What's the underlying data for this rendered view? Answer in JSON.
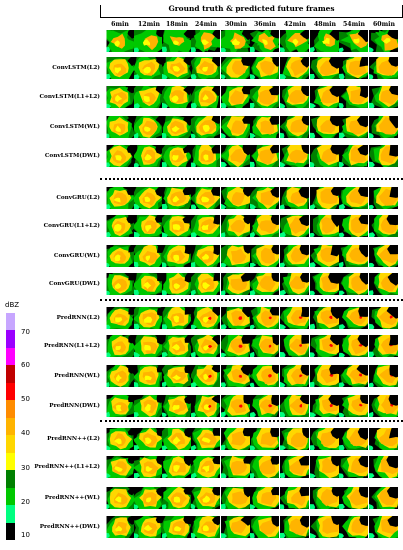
{
  "header": {
    "title": "Ground truth & predicted future frames"
  },
  "time_labels": [
    "6min",
    "12min",
    "18min",
    "24min",
    "30min",
    "36min",
    "42min",
    "48min",
    "54min",
    "60min"
  ],
  "rows": [
    {
      "label": ""
    },
    {
      "label": "ConvLSTM(L2)"
    },
    {
      "label": "ConvLSTM(L1+L2)"
    },
    {
      "label": "ConvLSTM(WL)"
    },
    {
      "label": "ConvLSTM(DWL)"
    },
    {
      "label": "ConvGRU(L2)"
    },
    {
      "label": "ConvGRU(L1+L2)"
    },
    {
      "label": "ConvGRU(WL)"
    },
    {
      "label": "ConvGRU(DWL)"
    },
    {
      "label": "PredRNN(L2)"
    },
    {
      "label": "PredRNN(L1+L2)"
    },
    {
      "label": "PredRNN(WL)"
    },
    {
      "label": "PredRNN(DWL)"
    },
    {
      "label": "PredRNN++(L2)"
    },
    {
      "label": "PredRNN++(L1+L2)"
    },
    {
      "label": "PredRNN++(WL)"
    },
    {
      "label": "PredRNN++(DWL)"
    }
  ],
  "colorbar": {
    "title": "dBZ",
    "ticks": [
      "70",
      "60",
      "50",
      "40",
      "30",
      "20",
      "10"
    ],
    "colors": [
      "#c7a6ff",
      "#9b00ff",
      "#ff00ff",
      "#c00000",
      "#ff0000",
      "#ff8c00",
      "#ffb400",
      "#ffd700",
      "#ffff00",
      "#008000",
      "#00c800",
      "#00ff80",
      "#000000"
    ]
  },
  "palette": {
    "black": "#000000",
    "teal": "#00ff80",
    "green": "#00c800",
    "dark_green": "#008000",
    "yellow": "#ffff00",
    "gold": "#ffd700",
    "orange": "#ffb400",
    "dark_orange": "#ff8c00",
    "red": "#ff0000",
    "white": "#ffffff"
  }
}
